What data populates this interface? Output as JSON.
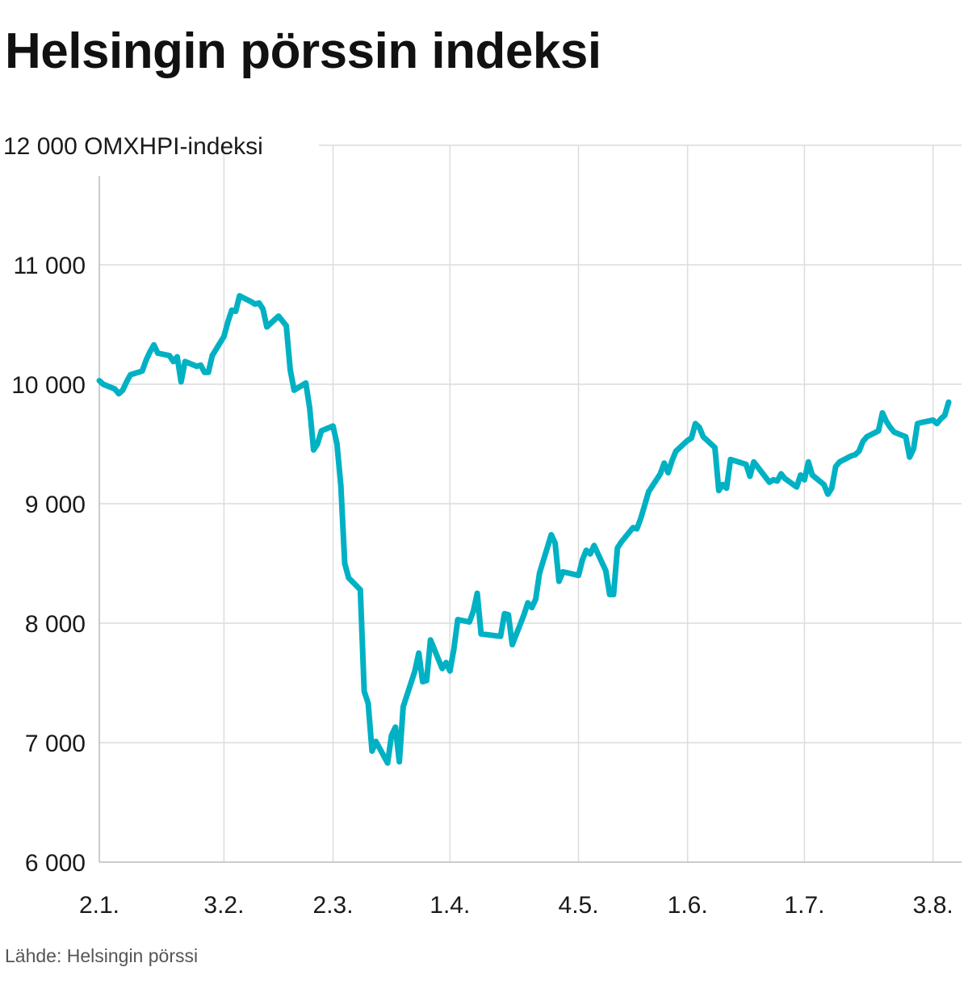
{
  "title": "Helsingin pörssin indeksi",
  "source": "Lähde: Helsingin pörssi",
  "chart_data": {
    "type": "line",
    "title": "Helsingin pörssin indeksi",
    "ylabel": "OMXHPI-indeksi",
    "ylim": [
      6000,
      12000
    ],
    "yticks": [
      6000,
      7000,
      8000,
      9000,
      10000,
      11000,
      12000
    ],
    "ytick_labels": [
      "6 000",
      "7 000",
      "8 000",
      "9 000",
      "10 000",
      "11 000",
      "12 000"
    ],
    "xlim": [
      "2020-01-02",
      "2020-08-07"
    ],
    "xticks": [
      "2020-01-02",
      "2020-02-03",
      "2020-03-02",
      "2020-04-01",
      "2020-05-04",
      "2020-06-01",
      "2020-07-01",
      "2020-08-03"
    ],
    "xtick_labels": [
      "2.1.",
      "3.2.",
      "2.3.",
      "1.4.",
      "4.5.",
      "1.6.",
      "1.7.",
      "3.8."
    ],
    "grid": true,
    "line_color": "#00b1c4",
    "series": [
      {
        "name": "",
        "points": [
          [
            "2020-01-02",
            10030
          ],
          [
            "2020-01-03",
            10000
          ],
          [
            "2020-01-06",
            9960
          ],
          [
            "2020-01-07",
            9920
          ],
          [
            "2020-01-08",
            9950
          ],
          [
            "2020-01-09",
            10020
          ],
          [
            "2020-01-10",
            10080
          ],
          [
            "2020-01-13",
            10110
          ],
          [
            "2020-01-14",
            10200
          ],
          [
            "2020-01-15",
            10270
          ],
          [
            "2020-01-16",
            10330
          ],
          [
            "2020-01-17",
            10260
          ],
          [
            "2020-01-20",
            10240
          ],
          [
            "2020-01-21",
            10190
          ],
          [
            "2020-01-22",
            10230
          ],
          [
            "2020-01-23",
            10020
          ],
          [
            "2020-01-24",
            10190
          ],
          [
            "2020-01-27",
            10150
          ],
          [
            "2020-01-28",
            10160
          ],
          [
            "2020-01-29",
            10100
          ],
          [
            "2020-01-30",
            10100
          ],
          [
            "2020-01-31",
            10240
          ],
          [
            "2020-02-03",
            10400
          ],
          [
            "2020-02-04",
            10520
          ],
          [
            "2020-02-05",
            10620
          ],
          [
            "2020-02-06",
            10610
          ],
          [
            "2020-02-07",
            10740
          ],
          [
            "2020-02-10",
            10690
          ],
          [
            "2020-02-11",
            10670
          ],
          [
            "2020-02-12",
            10680
          ],
          [
            "2020-02-13",
            10630
          ],
          [
            "2020-02-14",
            10480
          ],
          [
            "2020-02-17",
            10570
          ],
          [
            "2020-02-18",
            10530
          ],
          [
            "2020-02-19",
            10490
          ],
          [
            "2020-02-20",
            10120
          ],
          [
            "2020-02-21",
            9950
          ],
          [
            "2020-02-24",
            10010
          ],
          [
            "2020-02-25",
            9800
          ],
          [
            "2020-02-26",
            9450
          ],
          [
            "2020-02-27",
            9500
          ],
          [
            "2020-02-28",
            9610
          ],
          [
            "2020-03-02",
            9650
          ],
          [
            "2020-03-03",
            9500
          ],
          [
            "2020-03-04",
            9150
          ],
          [
            "2020-03-05",
            8500
          ],
          [
            "2020-03-06",
            8380
          ],
          [
            "2020-03-09",
            8280
          ],
          [
            "2020-03-10",
            7430
          ],
          [
            "2020-03-11",
            7330
          ],
          [
            "2020-03-12",
            6930
          ],
          [
            "2020-03-13",
            7010
          ],
          [
            "2020-03-16",
            6830
          ],
          [
            "2020-03-17",
            7060
          ],
          [
            "2020-03-18",
            7130
          ],
          [
            "2020-03-19",
            6840
          ],
          [
            "2020-03-20",
            7300
          ],
          [
            "2020-03-23",
            7600
          ],
          [
            "2020-03-24",
            7750
          ],
          [
            "2020-03-25",
            7510
          ],
          [
            "2020-03-26",
            7520
          ],
          [
            "2020-03-27",
            7860
          ],
          [
            "2020-03-30",
            7620
          ],
          [
            "2020-03-31",
            7670
          ],
          [
            "2020-04-01",
            7600
          ],
          [
            "2020-04-02",
            7780
          ],
          [
            "2020-04-03",
            8030
          ],
          [
            "2020-04-06",
            8010
          ],
          [
            "2020-04-07",
            8100
          ],
          [
            "2020-04-08",
            8250
          ],
          [
            "2020-04-09",
            7910
          ],
          [
            "2020-04-14",
            7890
          ],
          [
            "2020-04-15",
            8080
          ],
          [
            "2020-04-16",
            8070
          ],
          [
            "2020-04-17",
            7820
          ],
          [
            "2020-04-20",
            8070
          ],
          [
            "2020-04-21",
            8170
          ],
          [
            "2020-04-22",
            8130
          ],
          [
            "2020-04-23",
            8200
          ],
          [
            "2020-04-24",
            8420
          ],
          [
            "2020-04-27",
            8740
          ],
          [
            "2020-04-28",
            8670
          ],
          [
            "2020-04-29",
            8350
          ],
          [
            "2020-04-30",
            8430
          ],
          [
            "2020-05-04",
            8400
          ],
          [
            "2020-05-05",
            8530
          ],
          [
            "2020-05-06",
            8610
          ],
          [
            "2020-05-07",
            8580
          ],
          [
            "2020-05-08",
            8650
          ],
          [
            "2020-05-11",
            8440
          ],
          [
            "2020-05-12",
            8240
          ],
          [
            "2020-05-13",
            8240
          ],
          [
            "2020-05-14",
            8630
          ],
          [
            "2020-05-15",
            8680
          ],
          [
            "2020-05-18",
            8800
          ],
          [
            "2020-05-19",
            8790
          ],
          [
            "2020-05-20",
            8880
          ],
          [
            "2020-05-22",
            9100
          ],
          [
            "2020-05-25",
            9250
          ],
          [
            "2020-05-26",
            9340
          ],
          [
            "2020-05-27",
            9260
          ],
          [
            "2020-05-28",
            9360
          ],
          [
            "2020-05-29",
            9440
          ],
          [
            "2020-06-01",
            9530
          ],
          [
            "2020-06-02",
            9550
          ],
          [
            "2020-06-03",
            9670
          ],
          [
            "2020-06-04",
            9640
          ],
          [
            "2020-06-05",
            9560
          ],
          [
            "2020-06-08",
            9470
          ],
          [
            "2020-06-09",
            9110
          ],
          [
            "2020-06-10",
            9160
          ],
          [
            "2020-06-11",
            9130
          ],
          [
            "2020-06-12",
            9370
          ],
          [
            "2020-06-15",
            9340
          ],
          [
            "2020-06-16",
            9330
          ],
          [
            "2020-06-17",
            9230
          ],
          [
            "2020-06-18",
            9350
          ],
          [
            "2020-06-22",
            9180
          ],
          [
            "2020-06-23",
            9200
          ],
          [
            "2020-06-24",
            9190
          ],
          [
            "2020-06-25",
            9250
          ],
          [
            "2020-06-26",
            9210
          ],
          [
            "2020-06-29",
            9140
          ],
          [
            "2020-06-30",
            9240
          ],
          [
            "2020-07-01",
            9200
          ],
          [
            "2020-07-02",
            9350
          ],
          [
            "2020-07-03",
            9240
          ],
          [
            "2020-07-06",
            9160
          ],
          [
            "2020-07-07",
            9080
          ],
          [
            "2020-07-08",
            9130
          ],
          [
            "2020-07-09",
            9310
          ],
          [
            "2020-07-10",
            9350
          ],
          [
            "2020-07-13",
            9400
          ],
          [
            "2020-07-14",
            9410
          ],
          [
            "2020-07-15",
            9440
          ],
          [
            "2020-07-16",
            9520
          ],
          [
            "2020-07-17",
            9560
          ],
          [
            "2020-07-20",
            9610
          ],
          [
            "2020-07-21",
            9760
          ],
          [
            "2020-07-22",
            9690
          ],
          [
            "2020-07-23",
            9640
          ],
          [
            "2020-07-24",
            9600
          ],
          [
            "2020-07-27",
            9560
          ],
          [
            "2020-07-28",
            9390
          ],
          [
            "2020-07-29",
            9460
          ],
          [
            "2020-07-30",
            9670
          ],
          [
            "2020-07-31",
            9680
          ],
          [
            "2020-08-03",
            9700
          ],
          [
            "2020-08-04",
            9670
          ],
          [
            "2020-08-05",
            9710
          ],
          [
            "2020-08-06",
            9740
          ],
          [
            "2020-08-07",
            9850
          ]
        ]
      }
    ]
  }
}
